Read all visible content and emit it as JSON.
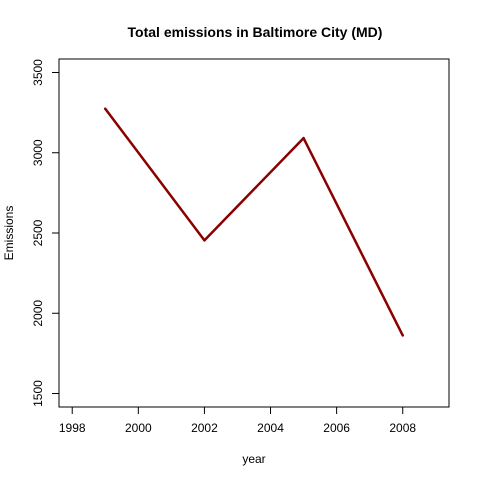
{
  "chart_data": {
    "type": "line",
    "title": "Total emissions in Baltimore City (MD)",
    "xlabel": "year",
    "ylabel": "Emissions",
    "xlim": [
      1997.6,
      2009.4
    ],
    "ylim": [
      1416,
      3584
    ],
    "xticks": [
      1998,
      2000,
      2002,
      2004,
      2006,
      2008
    ],
    "yticks": [
      1500,
      2000,
      2500,
      3000,
      3500
    ],
    "grid": false,
    "legend": "none",
    "series": [
      {
        "color": "#8b0000",
        "x": [
          1999,
          2002,
          2005,
          2008
        ],
        "y": [
          3274,
          2454,
          3091,
          1862
        ]
      }
    ]
  }
}
